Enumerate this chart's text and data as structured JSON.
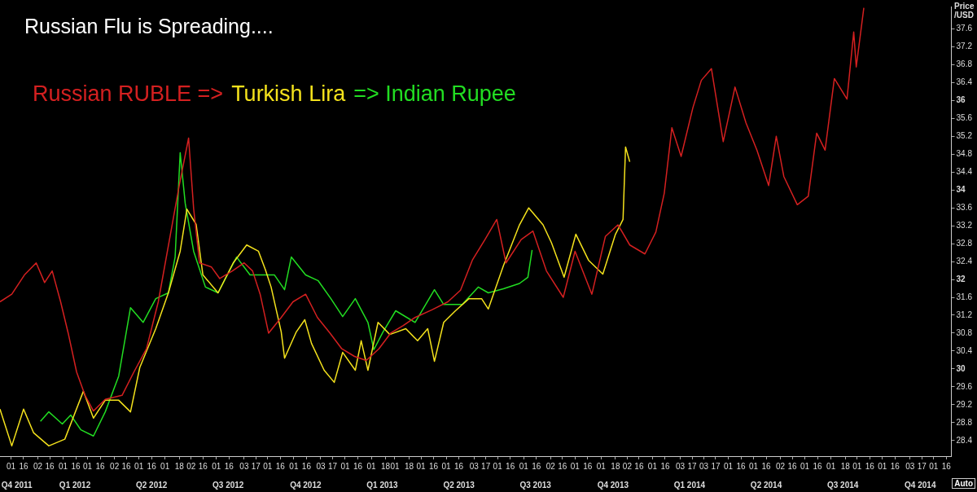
{
  "chart_data": {
    "type": "line",
    "title": "Russian Flu is Spreading....",
    "ylabel": "Price /USD",
    "legend": "top left",
    "marker": "none",
    "line_style": "solid",
    "grid": false,
    "annotations": [
      "Auto"
    ],
    "xlim": [
      "2011-11-18",
      "2014-12-22"
    ],
    "ylim": [
      28.05,
      38.1
    ],
    "x2lim": [
      "2011-11-18",
      "2014-12-22"
    ],
    "x2ticks": [
      {
        "value": "2011-12-08",
        "label": "Q4 2011"
      },
      {
        "value": "2012-02-15",
        "label": "Q1 2012"
      },
      {
        "value": "2012-05-16",
        "label": "Q2 2012"
      },
      {
        "value": "2012-08-15",
        "label": "Q3 2012"
      },
      {
        "value": "2012-11-15",
        "label": "Q4 2012"
      },
      {
        "value": "2013-02-14",
        "label": "Q1 2013"
      },
      {
        "value": "2013-05-16",
        "label": "Q2 2013"
      },
      {
        "value": "2013-08-15",
        "label": "Q3 2013"
      },
      {
        "value": "2013-11-15",
        "label": "Q4 2013"
      },
      {
        "value": "2014-02-14",
        "label": "Q1 2014"
      },
      {
        "value": "2014-05-16",
        "label": "Q2 2014"
      },
      {
        "value": "2014-08-15",
        "label": "Q3 2014"
      },
      {
        "value": "2014-11-15",
        "label": "Q4 2014"
      }
    ],
    "yticks": [
      28.4,
      28.8,
      29.2,
      29.6,
      30,
      30.4,
      30.8,
      31.2,
      31.6,
      32,
      32.4,
      32.8,
      33.2,
      33.6,
      34,
      34.4,
      34.8,
      35.2,
      35.6,
      36,
      36.4,
      36.8,
      37.2,
      37.6
    ],
    "xticks": [
      {
        "value": "2011-12-01",
        "label": "01"
      },
      {
        "value": "2011-12-16",
        "label": "16"
      },
      {
        "value": "2012-01-02",
        "label": "02"
      },
      {
        "value": "2012-01-16",
        "label": "16"
      },
      {
        "value": "2012-02-01",
        "label": "01"
      },
      {
        "value": "2012-02-16",
        "label": "16"
      },
      {
        "value": "2012-03-01",
        "label": "01"
      },
      {
        "value": "2012-03-16",
        "label": "16"
      },
      {
        "value": "2012-04-02",
        "label": "02"
      },
      {
        "value": "2012-04-16",
        "label": "16"
      },
      {
        "value": "2012-05-01",
        "label": "01"
      },
      {
        "value": "2012-05-16",
        "label": "16"
      },
      {
        "value": "2012-06-01",
        "label": "01"
      },
      {
        "value": "2012-06-18",
        "label": "18"
      },
      {
        "value": "2012-07-02",
        "label": "02"
      },
      {
        "value": "2012-07-16",
        "label": "16"
      },
      {
        "value": "2012-08-01",
        "label": "01"
      },
      {
        "value": "2012-08-16",
        "label": "16"
      },
      {
        "value": "2012-09-03",
        "label": "03"
      },
      {
        "value": "2012-09-17",
        "label": "17"
      },
      {
        "value": "2012-10-01",
        "label": "01"
      },
      {
        "value": "2012-10-16",
        "label": "16"
      },
      {
        "value": "2012-11-01",
        "label": "01"
      },
      {
        "value": "2012-11-16",
        "label": "16"
      },
      {
        "value": "2012-12-03",
        "label": "03"
      },
      {
        "value": "2012-12-17",
        "label": "17"
      },
      {
        "value": "2013-01-01",
        "label": "01"
      },
      {
        "value": "2013-01-16",
        "label": "16"
      },
      {
        "value": "2013-02-01",
        "label": "01"
      },
      {
        "value": "2013-02-18",
        "label": "18"
      },
      {
        "value": "2013-03-01",
        "label": "01"
      },
      {
        "value": "2013-03-18",
        "label": "18"
      },
      {
        "value": "2013-04-01",
        "label": "01"
      },
      {
        "value": "2013-04-16",
        "label": "16"
      },
      {
        "value": "2013-05-01",
        "label": "01"
      },
      {
        "value": "2013-05-16",
        "label": "16"
      },
      {
        "value": "2013-06-03",
        "label": "03"
      },
      {
        "value": "2013-06-17",
        "label": "17"
      },
      {
        "value": "2013-07-01",
        "label": "01"
      },
      {
        "value": "2013-07-16",
        "label": "16"
      },
      {
        "value": "2013-08-01",
        "label": "01"
      },
      {
        "value": "2013-08-16",
        "label": "16"
      },
      {
        "value": "2013-09-02",
        "label": "02"
      },
      {
        "value": "2013-09-16",
        "label": "16"
      },
      {
        "value": "2013-10-01",
        "label": "01"
      },
      {
        "value": "2013-10-16",
        "label": "16"
      },
      {
        "value": "2013-11-01",
        "label": "01"
      },
      {
        "value": "2013-11-18",
        "label": "18"
      },
      {
        "value": "2013-12-02",
        "label": "02"
      },
      {
        "value": "2013-12-16",
        "label": "16"
      },
      {
        "value": "2014-01-01",
        "label": "01"
      },
      {
        "value": "2014-01-16",
        "label": "16"
      },
      {
        "value": "2014-02-03",
        "label": "03"
      },
      {
        "value": "2014-02-17",
        "label": "17"
      },
      {
        "value": "2014-03-03",
        "label": "03"
      },
      {
        "value": "2014-03-17",
        "label": "17"
      },
      {
        "value": "2014-04-01",
        "label": "01"
      },
      {
        "value": "2014-04-16",
        "label": "16"
      },
      {
        "value": "2014-05-01",
        "label": "01"
      },
      {
        "value": "2014-05-16",
        "label": "16"
      },
      {
        "value": "2014-06-02",
        "label": "02"
      },
      {
        "value": "2014-06-16",
        "label": "16"
      },
      {
        "value": "2014-07-01",
        "label": "01"
      },
      {
        "value": "2014-07-16",
        "label": "16"
      },
      {
        "value": "2014-08-01",
        "label": "01"
      },
      {
        "value": "2014-08-18",
        "label": "18"
      },
      {
        "value": "2014-09-01",
        "label": "01"
      },
      {
        "value": "2014-09-16",
        "label": "16"
      },
      {
        "value": "2014-10-01",
        "label": "01"
      },
      {
        "value": "2014-10-16",
        "label": "16"
      },
      {
        "value": "2014-11-03",
        "label": "03"
      },
      {
        "value": "2014-11-17",
        "label": "17"
      },
      {
        "value": "2014-12-01",
        "label": "01"
      },
      {
        "value": "2014-12-16",
        "label": "16"
      }
    ],
    "series": [
      {
        "name": "Russian RUBLE =>",
        "color": "#d42020",
        "x": [
          "2011-11-18",
          "2011-12-02",
          "2011-12-17",
          "2011-12-31",
          "2012-01-10",
          "2012-01-19",
          "2012-01-29",
          "2012-02-07",
          "2012-02-17",
          "2012-02-27",
          "2012-03-08",
          "2012-03-22",
          "2012-04-11",
          "2012-04-25",
          "2012-05-10",
          "2012-05-24",
          "2012-06-08",
          "2012-06-18",
          "2012-06-29",
          "2012-07-05",
          "2012-07-12",
          "2012-07-26",
          "2012-08-05",
          "2012-08-20",
          "2012-09-03",
          "2012-09-13",
          "2012-09-22",
          "2012-10-02",
          "2012-10-17",
          "2012-10-31",
          "2012-11-15",
          "2012-11-29",
          "2012-12-14",
          "2012-12-28",
          "2013-01-12",
          "2013-01-26",
          "2013-02-10",
          "2013-02-24",
          "2013-03-11",
          "2013-03-25",
          "2013-04-14",
          "2013-05-03",
          "2013-05-18",
          "2013-06-01",
          "2013-06-16",
          "2013-06-30",
          "2013-07-11",
          "2013-07-29",
          "2013-08-12",
          "2013-08-28",
          "2013-09-17",
          "2013-10-01",
          "2013-10-21",
          "2013-11-06",
          "2013-11-21",
          "2013-12-05",
          "2013-12-23",
          "2014-01-05",
          "2014-01-15",
          "2014-01-24",
          "2014-02-04",
          "2014-02-18",
          "2014-02-28",
          "2014-03-12",
          "2014-03-26",
          "2014-04-09",
          "2014-04-22",
          "2014-05-05",
          "2014-05-19",
          "2014-05-28",
          "2014-06-06",
          "2014-06-22",
          "2014-07-05",
          "2014-07-15",
          "2014-07-25",
          "2014-08-05",
          "2014-08-20",
          "2014-08-28",
          "2014-08-31",
          "2014-09-09"
        ],
        "values": [
          31.5,
          31.67,
          32.1,
          32.37,
          31.93,
          32.19,
          31.5,
          30.8,
          29.93,
          29.41,
          29.06,
          29.32,
          29.41,
          29.93,
          30.45,
          31.5,
          33.07,
          34.11,
          35.16,
          33.58,
          32.37,
          32.28,
          32.02,
          32.19,
          32.37,
          32.19,
          31.67,
          30.8,
          31.15,
          31.5,
          31.67,
          31.15,
          30.8,
          30.45,
          30.28,
          30.19,
          30.45,
          30.8,
          30.97,
          31.15,
          31.32,
          31.5,
          31.76,
          32.43,
          32.89,
          33.34,
          32.37,
          32.89,
          33.08,
          32.19,
          31.6,
          32.63,
          31.67,
          32.96,
          33.22,
          32.77,
          32.57,
          33.06,
          33.93,
          35.39,
          34.75,
          35.84,
          36.45,
          36.71,
          35.08,
          36.3,
          35.5,
          34.89,
          34.1,
          35.2,
          34.3,
          33.67,
          33.86,
          35.27,
          34.89,
          36.49,
          36.03,
          37.53,
          36.75,
          38.07
        ]
      },
      {
        "name": "Turkish Lira",
        "color": "#f4e21c",
        "x": [
          "2011-11-18",
          "2011-12-02",
          "2011-12-16",
          "2011-12-28",
          "2012-01-15",
          "2012-02-03",
          "2012-02-25",
          "2012-03-08",
          "2012-03-22",
          "2012-04-07",
          "2012-04-21",
          "2012-05-02",
          "2012-05-21",
          "2012-06-05",
          "2012-06-19",
          "2012-06-27",
          "2012-07-08",
          "2012-07-16",
          "2012-08-03",
          "2012-08-21",
          "2012-09-06",
          "2012-09-20",
          "2012-09-28",
          "2012-10-05",
          "2012-10-17",
          "2012-10-21",
          "2012-11-04",
          "2012-11-14",
          "2012-11-22",
          "2012-12-07",
          "2012-12-19",
          "2012-12-29",
          "2013-01-13",
          "2013-01-20",
          "2013-01-28",
          "2013-02-09",
          "2013-02-23",
          "2013-03-14",
          "2013-03-28",
          "2013-04-09",
          "2013-04-17",
          "2013-04-28",
          "2013-05-12",
          "2013-05-28",
          "2013-06-12",
          "2013-06-20",
          "2013-07-08",
          "2013-07-27",
          "2013-08-07",
          "2013-08-24",
          "2013-09-03",
          "2013-09-18",
          "2013-10-02",
          "2013-10-17",
          "2013-11-03",
          "2013-11-18",
          "2013-11-27",
          "2013-11-30",
          "2013-12-05"
        ],
        "values": [
          29.1,
          28.28,
          29.1,
          28.57,
          28.28,
          28.43,
          29.5,
          28.9,
          29.3,
          29.3,
          29.04,
          30.03,
          30.9,
          31.7,
          32.63,
          33.57,
          33.23,
          32.1,
          31.7,
          32.37,
          32.77,
          32.63,
          32.23,
          31.83,
          30.83,
          30.24,
          30.83,
          31.1,
          30.57,
          29.97,
          29.7,
          30.37,
          29.97,
          30.63,
          29.97,
          31.04,
          30.77,
          30.9,
          30.63,
          30.9,
          30.17,
          31.04,
          31.3,
          31.57,
          31.57,
          31.34,
          32.31,
          33.22,
          33.6,
          33.22,
          32.82,
          32.05,
          33.01,
          32.43,
          32.12,
          33.01,
          33.34,
          34.96,
          34.63
        ]
      },
      {
        "name": "=> Indian Rupee",
        "color": "#22dd22",
        "x": [
          "2012-01-05",
          "2012-01-15",
          "2012-01-31",
          "2012-02-10",
          "2012-02-22",
          "2012-03-08",
          "2012-03-22",
          "2012-04-07",
          "2012-04-21",
          "2012-05-06",
          "2012-05-21",
          "2012-06-05",
          "2012-06-13",
          "2012-06-19",
          "2012-06-25",
          "2012-07-05",
          "2012-07-19",
          "2012-08-03",
          "2012-08-25",
          "2012-09-10",
          "2012-09-24",
          "2012-10-09",
          "2012-10-21",
          "2012-10-29",
          "2012-11-15",
          "2012-11-30",
          "2012-12-15",
          "2012-12-29",
          "2013-01-13",
          "2013-01-28",
          "2013-02-04",
          "2013-02-15",
          "2013-03-02",
          "2013-03-25",
          "2013-04-17",
          "2013-04-28",
          "2013-05-20",
          "2013-06-08",
          "2013-06-20",
          "2013-07-08",
          "2013-07-27",
          "2013-08-06",
          "2013-08-11"
        ],
        "values": [
          28.83,
          29.04,
          28.77,
          28.97,
          28.64,
          28.5,
          29.04,
          29.84,
          31.37,
          31.04,
          31.57,
          31.7,
          32.5,
          34.83,
          33.7,
          32.63,
          31.83,
          31.7,
          32.5,
          32.1,
          32.1,
          32.1,
          31.77,
          32.5,
          32.1,
          31.97,
          31.57,
          31.17,
          31.57,
          31.04,
          30.43,
          30.83,
          31.3,
          31.04,
          31.77,
          31.44,
          31.44,
          31.83,
          31.7,
          31.79,
          31.91,
          32.05,
          32.66
        ]
      }
    ]
  }
}
